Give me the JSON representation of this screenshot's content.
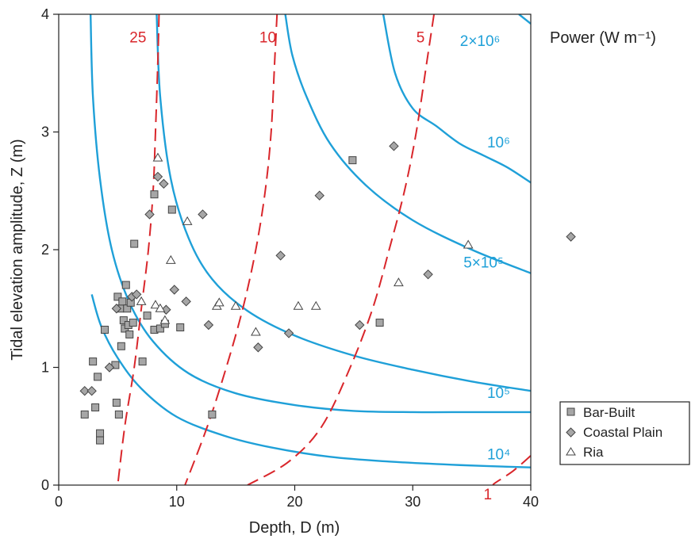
{
  "chart_data": {
    "type": "scatter",
    "xlabel": "Depth, D (m)",
    "ylabel": "Tidal elevation amplitude, Z (m)",
    "xlim": [
      0,
      40
    ],
    "ylim": [
      0,
      4
    ],
    "xticks": [
      0,
      10,
      20,
      30,
      40
    ],
    "yticks": [
      0,
      1,
      2,
      3,
      4
    ],
    "grid": false,
    "legend_position": "right",
    "power_title": "Power (W m⁻¹)",
    "colors": {
      "power": "#1fa0d8",
      "ratio": "#d9262b",
      "marker_fill": "#a6a6a6",
      "marker_stroke": "#444444"
    },
    "series": [
      {
        "name": "Bar-Built",
        "marker": "square",
        "points": [
          [
            2.2,
            0.6
          ],
          [
            2.9,
            1.05
          ],
          [
            3.1,
            0.66
          ],
          [
            3.3,
            0.92
          ],
          [
            3.5,
            0.44
          ],
          [
            3.5,
            0.38
          ],
          [
            3.9,
            1.32
          ],
          [
            4.8,
            1.02
          ],
          [
            4.9,
            0.7
          ],
          [
            5.0,
            1.6
          ],
          [
            5.1,
            0.6
          ],
          [
            5.2,
            1.5
          ],
          [
            5.3,
            1.18
          ],
          [
            5.4,
            1.56
          ],
          [
            5.5,
            1.4
          ],
          [
            5.6,
            1.33
          ],
          [
            5.7,
            1.7
          ],
          [
            5.8,
            1.5
          ],
          [
            5.9,
            1.36
          ],
          [
            6.0,
            1.28
          ],
          [
            6.1,
            1.55
          ],
          [
            6.3,
            1.38
          ],
          [
            6.4,
            2.05
          ],
          [
            7.1,
            1.05
          ],
          [
            7.5,
            1.44
          ],
          [
            8.1,
            2.47
          ],
          [
            8.1,
            1.32
          ],
          [
            8.6,
            1.33
          ],
          [
            9.0,
            1.37
          ],
          [
            9.6,
            2.34
          ],
          [
            10.3,
            1.34
          ],
          [
            13.0,
            0.6
          ],
          [
            24.9,
            2.76
          ],
          [
            27.2,
            1.38
          ]
        ]
      },
      {
        "name": "Coastal Plain",
        "marker": "diamond",
        "points": [
          [
            2.2,
            0.8
          ],
          [
            2.8,
            0.8
          ],
          [
            4.3,
            1.0
          ],
          [
            4.9,
            1.5
          ],
          [
            6.2,
            1.6
          ],
          [
            6.6,
            1.62
          ],
          [
            7.7,
            2.3
          ],
          [
            8.4,
            2.62
          ],
          [
            8.9,
            2.56
          ],
          [
            9.1,
            1.49
          ],
          [
            9.8,
            1.66
          ],
          [
            10.8,
            1.56
          ],
          [
            12.2,
            2.3
          ],
          [
            12.7,
            1.36
          ],
          [
            16.9,
            1.17
          ],
          [
            18.8,
            1.95
          ],
          [
            19.5,
            1.29
          ],
          [
            22.1,
            2.46
          ],
          [
            25.5,
            1.36
          ],
          [
            28.4,
            2.88
          ],
          [
            31.3,
            1.79
          ],
          [
            43.4,
            2.11
          ]
        ]
      },
      {
        "name": "Ria",
        "marker": "triangle",
        "points": [
          [
            7.0,
            1.56
          ],
          [
            8.2,
            1.53
          ],
          [
            8.4,
            2.78
          ],
          [
            8.6,
            1.5
          ],
          [
            9.0,
            1.4
          ],
          [
            9.5,
            1.91
          ],
          [
            10.9,
            2.24
          ],
          [
            13.4,
            1.52
          ],
          [
            13.6,
            1.55
          ],
          [
            15.0,
            1.52
          ],
          [
            16.7,
            1.3
          ],
          [
            20.3,
            1.52
          ],
          [
            21.8,
            1.52
          ],
          [
            28.8,
            1.72
          ],
          [
            34.7,
            2.04
          ]
        ]
      }
    ],
    "power_curves": [
      {
        "label": "2×10⁶",
        "points": [
          [
            27.5,
            4.0
          ],
          [
            28.5,
            3.5
          ],
          [
            30,
            3.2
          ],
          [
            32,
            3.05
          ],
          [
            34,
            2.9
          ],
          [
            36,
            2.8
          ],
          [
            38,
            2.7
          ],
          [
            40,
            2.57
          ]
        ]
      },
      {
        "label": "10⁶",
        "points": [
          [
            19.2,
            4.0
          ],
          [
            19.8,
            3.65
          ],
          [
            21,
            3.3
          ],
          [
            23,
            2.9
          ],
          [
            26,
            2.55
          ],
          [
            30,
            2.25
          ],
          [
            35,
            2.0
          ],
          [
            40,
            1.8
          ]
        ]
      },
      {
        "label": "5×10⁵",
        "points": [
          [
            8.3,
            4.0
          ],
          [
            8.6,
            3.3
          ],
          [
            9.5,
            2.6
          ],
          [
            11,
            2.1
          ],
          [
            13,
            1.75
          ],
          [
            16,
            1.48
          ],
          [
            20,
            1.27
          ],
          [
            25,
            1.1
          ],
          [
            30,
            0.98
          ],
          [
            35,
            0.88
          ],
          [
            40,
            0.8
          ]
        ]
      },
      {
        "label": "10⁵",
        "points": [
          [
            2.7,
            4.0
          ],
          [
            2.9,
            3.3
          ],
          [
            3.5,
            2.6
          ],
          [
            4.5,
            2.0
          ],
          [
            6,
            1.55
          ],
          [
            8,
            1.22
          ],
          [
            11,
            0.95
          ],
          [
            15,
            0.78
          ],
          [
            20,
            0.68
          ],
          [
            25,
            0.63
          ],
          [
            30,
            0.62
          ],
          [
            35,
            0.62
          ],
          [
            40,
            0.62
          ]
        ]
      },
      {
        "label": "10⁴",
        "points": [
          [
            2.8,
            1.62
          ],
          [
            3.6,
            1.35
          ],
          [
            5,
            1.08
          ],
          [
            7,
            0.82
          ],
          [
            10,
            0.58
          ],
          [
            14,
            0.42
          ],
          [
            18,
            0.32
          ],
          [
            23,
            0.24
          ],
          [
            28,
            0.2
          ],
          [
            34,
            0.17
          ],
          [
            40,
            0.15
          ]
        ]
      },
      {
        "label": "",
        "points": [
          [
            40,
            3.92
          ],
          [
            39,
            4.0
          ]
        ]
      }
    ],
    "ratio_curves": [
      {
        "label": "25",
        "points": [
          [
            8.5,
            4.0
          ],
          [
            8.4,
            3.6
          ],
          [
            8.2,
            3.0
          ],
          [
            8.0,
            2.5
          ],
          [
            7.6,
            2.0
          ],
          [
            7.0,
            1.5
          ],
          [
            6.4,
            1.0
          ],
          [
            5.6,
            0.5
          ],
          [
            5.0,
            0.0
          ]
        ]
      },
      {
        "label": "10",
        "points": [
          [
            18.5,
            4.0
          ],
          [
            18.3,
            3.6
          ],
          [
            18.0,
            3.0
          ],
          [
            17.5,
            2.5
          ],
          [
            16.7,
            2.0
          ],
          [
            15.6,
            1.5
          ],
          [
            14.2,
            1.0
          ],
          [
            12.6,
            0.5
          ],
          [
            10.7,
            0.0
          ]
        ]
      },
      {
        "label": "5",
        "points": [
          [
            31.8,
            4.0
          ],
          [
            31.2,
            3.6
          ],
          [
            30.3,
            3.0
          ],
          [
            29.3,
            2.5
          ],
          [
            28.0,
            2.0
          ],
          [
            26.6,
            1.5
          ],
          [
            24.7,
            1.0
          ],
          [
            22.3,
            0.5
          ],
          [
            19.5,
            0.2
          ],
          [
            16.0,
            0.0
          ]
        ]
      },
      {
        "label": "1",
        "points": [
          [
            40,
            0.25
          ],
          [
            38.5,
            0.12
          ],
          [
            37,
            0.02
          ],
          [
            36.8,
            0.0
          ]
        ]
      }
    ],
    "label_positions": {
      "ratio": [
        [
          25,
          6.0,
          3.76
        ],
        [
          10,
          17.0,
          3.76
        ],
        [
          5,
          30.3,
          3.76
        ],
        [
          1,
          36.0,
          -0.12
        ]
      ],
      "power": [
        [
          2,
          34.0,
          3.75
        ],
        [
          1,
          36.3,
          2.89
        ],
        [
          0,
          34.3,
          1.85
        ],
        [
          0,
          36.3,
          0.76
        ],
        [
          0,
          36.3,
          0.24
        ],
        [
          0,
          36.3,
          0.76
        ]
      ]
    }
  }
}
